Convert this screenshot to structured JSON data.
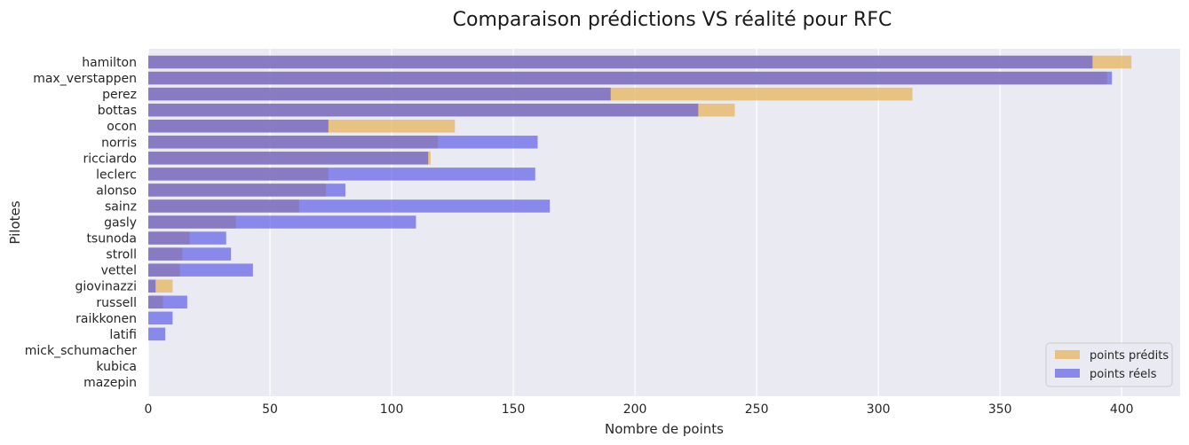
{
  "chart_data": {
    "type": "bar",
    "orientation": "horizontal",
    "title": "Comparaison prédictions VS réalité pour RFC",
    "xlabel": "Nombre de points",
    "ylabel": "Pilotes",
    "xlim": [
      0,
      424
    ],
    "xticks": [
      0,
      50,
      100,
      150,
      200,
      250,
      300,
      350,
      400
    ],
    "grid": true,
    "legend_position": "bottom-right",
    "categories": [
      "hamilton",
      "max_verstappen",
      "perez",
      "bottas",
      "ocon",
      "norris",
      "ricciardo",
      "leclerc",
      "alonso",
      "sainz",
      "gasly",
      "tsunoda",
      "stroll",
      "vettel",
      "giovinazzi",
      "russell",
      "raikkonen",
      "latifi",
      "mick_schumacher",
      "kubica",
      "mazepin"
    ],
    "series": [
      {
        "name": "points prédits",
        "color": "#e5b45e",
        "values": [
          404,
          394,
          314,
          241,
          126,
          119,
          116,
          74,
          73,
          62,
          36,
          17,
          14,
          13,
          10,
          6,
          0,
          0,
          0,
          0,
          0
        ]
      },
      {
        "name": "points réels",
        "color": "#5555e6",
        "values": [
          388,
          396,
          190,
          226,
          74,
          160,
          115,
          159,
          81,
          165,
          110,
          32,
          34,
          43,
          3,
          16,
          10,
          7,
          0,
          0,
          0
        ]
      }
    ]
  }
}
